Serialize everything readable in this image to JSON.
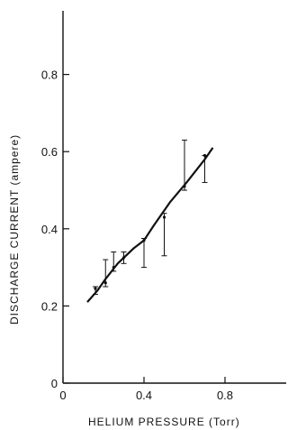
{
  "chart_data": {
    "type": "line",
    "title": "",
    "xlabel": "HELIUM PRESSURE (Torr)",
    "ylabel": "DISCHARGE CURRENT (ampere)",
    "xlim": [
      0,
      0.8
    ],
    "ylim": [
      0,
      0.9
    ],
    "x_ticks": [
      0,
      0.4,
      0.8
    ],
    "x_tick_labels": [
      "0",
      "0.4",
      "0.8"
    ],
    "y_ticks": [
      0,
      0.2,
      0.4,
      0.6,
      0.8
    ],
    "y_tick_labels": [
      "0",
      "0.2",
      "0.4",
      "0.6",
      "0.8"
    ],
    "grid": false,
    "line_color": "#111111",
    "fit_line": {
      "x": [
        0.12,
        0.17,
        0.21,
        0.27,
        0.35,
        0.4,
        0.45,
        0.53,
        0.61,
        0.7,
        0.74
      ],
      "y": [
        0.21,
        0.24,
        0.27,
        0.31,
        0.35,
        0.37,
        0.41,
        0.47,
        0.52,
        0.58,
        0.61
      ]
    },
    "measurements": [
      {
        "x": 0.16,
        "y": 0.245,
        "y_low": 0.23,
        "y_high": 0.25
      },
      {
        "x": 0.21,
        "y": 0.26,
        "y_low": 0.25,
        "y_high": 0.32
      },
      {
        "x": 0.25,
        "y": 0.3,
        "y_low": 0.29,
        "y_high": 0.34
      },
      {
        "x": 0.3,
        "y": 0.325,
        "y_low": 0.31,
        "y_high": 0.34
      },
      {
        "x": 0.4,
        "y": 0.37,
        "y_low": 0.3,
        "y_high": 0.375
      },
      {
        "x": 0.5,
        "y": 0.43,
        "y_low": 0.33,
        "y_high": 0.44
      },
      {
        "x": 0.6,
        "y": 0.51,
        "y_low": 0.5,
        "y_high": 0.63
      },
      {
        "x": 0.7,
        "y": 0.59,
        "y_low": 0.52,
        "y_high": 0.59
      }
    ]
  }
}
